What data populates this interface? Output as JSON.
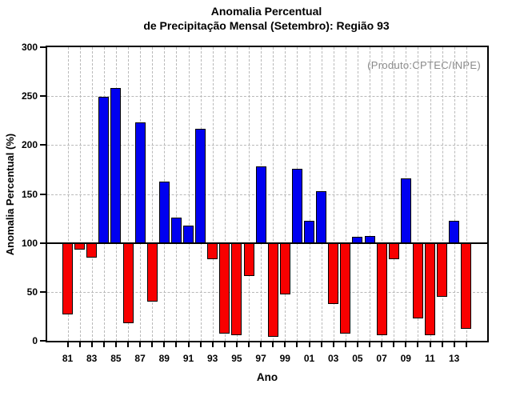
{
  "header": {
    "title_line1": "Anomalia Percentual",
    "title_line2": "de Precipitação Mensal (Setembro): Região 93"
  },
  "annotation": {
    "text": "(Produto:CPTEC/INPE)",
    "color": "#8a8a8a"
  },
  "axes": {
    "y_label": "Anomalia Percentual (%)",
    "x_label": "Ano"
  },
  "colors": {
    "above_normal": "#0000f0",
    "below_normal": "#f80000",
    "grid": "#b9b9b9",
    "axis": "#000000"
  },
  "chart_data": {
    "type": "bar",
    "title": "Anomalia Percentual de Precipitação Mensal (Setembro): Região 93",
    "xlabel": "Ano",
    "ylabel": "Anomalia Percentual (%)",
    "ylim": [
      0,
      300
    ],
    "y_ticks": [
      0,
      50,
      100,
      150,
      200,
      250,
      300
    ],
    "baseline": 100,
    "grid": "dashed, vertical line at every year, horizontal every 50",
    "legend": "none",
    "color_rule": "bars above 100% blue, below 100% red; bars span from 100 baseline to value",
    "annotation": "(Produto:CPTEC/INPE)",
    "years": [
      1981,
      1982,
      1983,
      1984,
      1985,
      1986,
      1987,
      1988,
      1989,
      1990,
      1991,
      1992,
      1993,
      1994,
      1995,
      1996,
      1997,
      1998,
      1999,
      2000,
      2001,
      2002,
      2003,
      2004,
      2005,
      2006,
      2007,
      2008,
      2009,
      2010,
      2011,
      2012,
      2013,
      2014
    ],
    "x_short": [
      "81",
      "82",
      "83",
      "84",
      "85",
      "86",
      "87",
      "88",
      "89",
      "90",
      "91",
      "92",
      "93",
      "94",
      "95",
      "96",
      "97",
      "98",
      "99",
      "00",
      "01",
      "02",
      "03",
      "04",
      "05",
      "06",
      "07",
      "08",
      "09",
      "10",
      "11",
      "12",
      "13",
      "14"
    ],
    "labeled_ticks": [
      "81",
      "83",
      "85",
      "87",
      "89",
      "91",
      "93",
      "95",
      "97",
      "99",
      "01",
      "03",
      "05",
      "07",
      "09",
      "11",
      "13"
    ],
    "values": [
      27,
      93,
      85,
      249,
      258,
      18,
      223,
      40,
      163,
      126,
      118,
      217,
      83,
      7,
      6,
      66,
      178,
      4,
      47,
      176,
      123,
      153,
      38,
      7,
      106,
      107,
      6,
      83,
      166,
      23,
      6,
      45,
      123,
      12
    ]
  }
}
